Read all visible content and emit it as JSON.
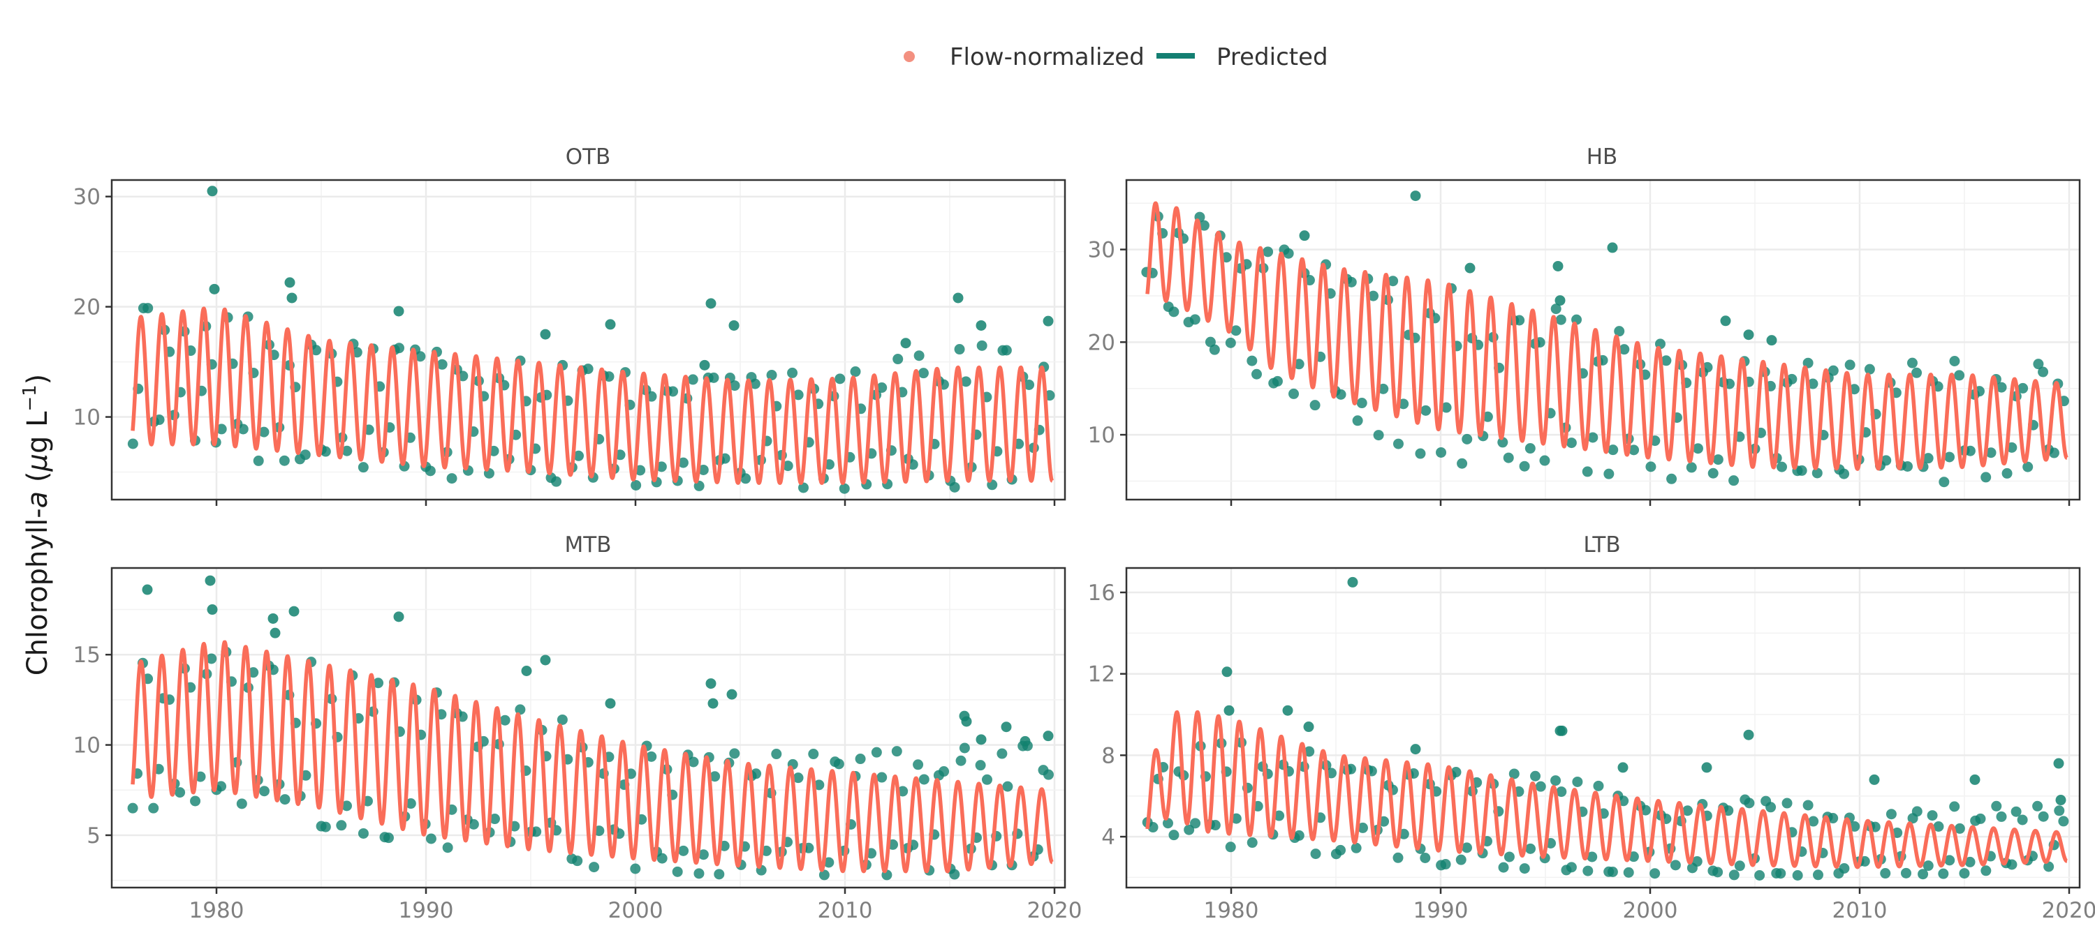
{
  "legend": {
    "placement": "top-center",
    "items": [
      {
        "label": "Flow-normalized",
        "shape": "point",
        "color": "#f39080"
      },
      {
        "label": "Predicted",
        "shape": "line",
        "color": "#147f72"
      }
    ]
  },
  "colors": {
    "points": "#12816f",
    "line": "#fa6d59",
    "panel_border": "#333333",
    "grid": "#ebebeb"
  },
  "chart_data": [
    {
      "panel": "OTB",
      "type": "scatter",
      "grid": true,
      "xlim": [
        1975,
        2020.5
      ],
      "ylim": [
        2.5,
        31.5
      ],
      "xticks": [
        "1980",
        "1990",
        "2000",
        "2010",
        "2020"
      ],
      "yticks": [
        "10",
        "20",
        "30"
      ],
      "ytick_values": [
        10,
        20,
        30
      ],
      "seasonal_line": {
        "x_start": 1976.0,
        "x_end": 2019.9,
        "peaks": [
          [
            1976,
            19
          ],
          [
            1980,
            20
          ],
          [
            1985,
            17
          ],
          [
            1990,
            16
          ],
          [
            1995,
            15
          ],
          [
            2000,
            14
          ],
          [
            2005,
            13.3
          ],
          [
            2010,
            13.5
          ],
          [
            2015,
            14.5
          ],
          [
            2019.9,
            14.5
          ]
        ],
        "troughs": [
          [
            1976,
            7.5
          ],
          [
            1980,
            7.5
          ],
          [
            1985,
            6.5
          ],
          [
            1990,
            5.5
          ],
          [
            1995,
            5.0
          ],
          [
            2000,
            4.3
          ],
          [
            2005,
            4.0
          ],
          [
            2010,
            4.0
          ],
          [
            2015,
            4.2
          ],
          [
            2019.9,
            4.2
          ]
        ]
      },
      "point_range": {
        "highs": [
          [
            1976,
            20
          ],
          [
            1980,
            20
          ],
          [
            1985,
            17
          ],
          [
            1990,
            16
          ],
          [
            1995,
            15
          ],
          [
            2000,
            14
          ],
          [
            2005,
            13.5
          ],
          [
            2010,
            14.5
          ],
          [
            2015,
            16
          ],
          [
            2019.9,
            17.5
          ]
        ],
        "lows": [
          [
            1976,
            7.5
          ],
          [
            1980,
            6.5
          ],
          [
            1985,
            5.3
          ],
          [
            1990,
            4.5
          ],
          [
            1995,
            4.2
          ],
          [
            2000,
            3.8
          ],
          [
            2005,
            3.7
          ],
          [
            2010,
            3.5
          ],
          [
            2015,
            3.6
          ],
          [
            2019.9,
            4.0
          ]
        ]
      },
      "outliers": [
        [
          1979.8,
          30.5
        ],
        [
          1979.9,
          21.6
        ],
        [
          1983.5,
          22.2
        ],
        [
          1983.6,
          20.8
        ],
        [
          1988.7,
          19.6
        ],
        [
          1995.7,
          17.5
        ],
        [
          1998.8,
          18.4
        ],
        [
          2003.6,
          20.3
        ],
        [
          2004.7,
          18.3
        ],
        [
          2012.9,
          16.7
        ],
        [
          2015.4,
          20.8
        ],
        [
          2016.5,
          18.3
        ],
        [
          2019.7,
          18.7
        ],
        [
          2003.3,
          14.7
        ]
      ]
    },
    {
      "panel": "HB",
      "type": "scatter",
      "grid": true,
      "xlim": [
        1975,
        2020.5
      ],
      "ylim": [
        3,
        37.5
      ],
      "xticks": [
        "1980",
        "1990",
        "2000",
        "2010",
        "2020"
      ],
      "yticks": [
        "10",
        "20",
        "30"
      ],
      "ytick_values": [
        10,
        20,
        30
      ],
      "seasonal_line": {
        "x_start": 1976.0,
        "x_end": 2019.9,
        "peaks": [
          [
            1976,
            35
          ],
          [
            1977,
            35
          ],
          [
            1980,
            31
          ],
          [
            1985,
            28
          ],
          [
            1990,
            26.5
          ],
          [
            1995,
            23
          ],
          [
            2000,
            19.5
          ],
          [
            2005,
            18
          ],
          [
            2010,
            16.5
          ],
          [
            2015,
            16.5
          ],
          [
            2019.9,
            15.5
          ]
        ],
        "troughs": [
          [
            1976,
            24
          ],
          [
            1977,
            24.5
          ],
          [
            1980,
            21
          ],
          [
            1982,
            17
          ],
          [
            1985,
            14
          ],
          [
            1990,
            10.5
          ],
          [
            1995,
            9
          ],
          [
            2000,
            7.5
          ],
          [
            2005,
            6.5
          ],
          [
            2010,
            6.3
          ],
          [
            2015,
            6.5
          ],
          [
            2019.9,
            7.5
          ]
        ]
      },
      "point_range": {
        "highs": [
          [
            1976,
            36
          ],
          [
            1980,
            32
          ],
          [
            1985,
            28
          ],
          [
            1990,
            26
          ],
          [
            1995,
            24
          ],
          [
            2000,
            20
          ],
          [
            2005,
            18
          ],
          [
            2010,
            17.5
          ],
          [
            2015,
            18
          ],
          [
            2019.9,
            17.5
          ]
        ],
        "lows": [
          [
            1976,
            24
          ],
          [
            1980,
            18
          ],
          [
            1985,
            12
          ],
          [
            1990,
            7
          ],
          [
            1995,
            6.5
          ],
          [
            2000,
            5.3
          ],
          [
            2005,
            5.0
          ],
          [
            2010,
            4.5
          ],
          [
            2015,
            5.0
          ],
          [
            2019.9,
            7.0
          ]
        ]
      },
      "outliers": [
        [
          1988.8,
          35.8
        ],
        [
          1998.2,
          30.2
        ],
        [
          1995.6,
          28.2
        ],
        [
          1991.4,
          28.0
        ],
        [
          1995.7,
          24.5
        ],
        [
          2003.6,
          22.3
        ],
        [
          2004.7,
          20.8
        ],
        [
          2005.8,
          20.2
        ],
        [
          1983.5,
          31.5
        ]
      ]
    },
    {
      "panel": "MTB",
      "type": "scatter",
      "grid": true,
      "xlim": [
        1975,
        2020.5
      ],
      "ylim": [
        2.1,
        19.8
      ],
      "xticks": [
        "1980",
        "1990",
        "2000",
        "2010",
        "2020"
      ],
      "yticks": [
        "5",
        "10",
        "15"
      ],
      "ytick_values": [
        5,
        10,
        15
      ],
      "seasonal_line": {
        "x_start": 1976.0,
        "x_end": 2019.9,
        "peaks": [
          [
            1976,
            14.5
          ],
          [
            1980,
            15.8
          ],
          [
            1985,
            14.5
          ],
          [
            1990,
            13.2
          ],
          [
            1995,
            11.5
          ],
          [
            2000,
            10.0
          ],
          [
            2005,
            9.0
          ],
          [
            2010,
            8.5
          ],
          [
            2015,
            8.0
          ],
          [
            2019.9,
            7.5
          ]
        ],
        "troughs": [
          [
            1976,
            7.0
          ],
          [
            1980,
            7.5
          ],
          [
            1985,
            6.5
          ],
          [
            1990,
            5.0
          ],
          [
            1995,
            4.2
          ],
          [
            2000,
            3.7
          ],
          [
            2005,
            3.3
          ],
          [
            2010,
            3.0
          ],
          [
            2015,
            3.0
          ],
          [
            2019.9,
            3.5
          ]
        ]
      },
      "point_range": {
        "highs": [
          [
            1976,
            14.5
          ],
          [
            1980,
            15.5
          ],
          [
            1985,
            14.5
          ],
          [
            1990,
            13
          ],
          [
            1995,
            12
          ],
          [
            2000,
            10
          ],
          [
            2005,
            9.5
          ],
          [
            2010,
            9.5
          ],
          [
            2015,
            9.8
          ],
          [
            2019.9,
            10
          ]
        ],
        "lows": [
          [
            1976,
            6.5
          ],
          [
            1980,
            6.5
          ],
          [
            1985,
            5.5
          ],
          [
            1990,
            4.5
          ],
          [
            1995,
            3.6
          ],
          [
            2000,
            3.0
          ],
          [
            2005,
            2.8
          ],
          [
            2010,
            2.8
          ],
          [
            2015,
            2.8
          ],
          [
            2019.9,
            3.5
          ]
        ]
      },
      "outliers": [
        [
          1976.7,
          18.6
        ],
        [
          1979.7,
          19.1
        ],
        [
          1979.8,
          17.5
        ],
        [
          1982.7,
          17.0
        ],
        [
          1982.8,
          16.2
        ],
        [
          1983.7,
          17.4
        ],
        [
          1988.7,
          17.1
        ],
        [
          1995.7,
          14.7
        ],
        [
          1994.8,
          14.1
        ],
        [
          1998.8,
          12.3
        ],
        [
          2003.6,
          13.4
        ],
        [
          2003.7,
          12.3
        ],
        [
          2004.6,
          12.8
        ],
        [
          2015.7,
          11.6
        ],
        [
          2015.8,
          11.3
        ],
        [
          2016.5,
          10.3
        ],
        [
          2017.7,
          11.0
        ],
        [
          2018.6,
          10.2
        ],
        [
          2019.7,
          10.5
        ]
      ]
    },
    {
      "panel": "LTB",
      "type": "scatter",
      "grid": true,
      "xlim": [
        1975,
        2020.5
      ],
      "ylim": [
        1.5,
        17.2
      ],
      "xticks": [
        "1980",
        "1990",
        "2000",
        "2010",
        "2020"
      ],
      "yticks": [
        "4",
        "8",
        "12",
        "16"
      ],
      "ytick_values": [
        4,
        8,
        12,
        16
      ],
      "seasonal_line": {
        "x_start": 1976.0,
        "x_end": 2019.9,
        "peaks": [
          [
            1976,
            7.5
          ],
          [
            1977.5,
            10.3
          ],
          [
            1980,
            9.8
          ],
          [
            1983,
            8.7
          ],
          [
            1985,
            8.0
          ],
          [
            1990,
            7.5
          ],
          [
            1995,
            6.5
          ],
          [
            2000,
            5.8
          ],
          [
            2005,
            5.3
          ],
          [
            2010,
            4.8
          ],
          [
            2015,
            4.5
          ],
          [
            2019.9,
            4.2
          ]
        ],
        "troughs": [
          [
            1976,
            4.0
          ],
          [
            1977,
            5.0
          ],
          [
            1979,
            4.2
          ],
          [
            1985,
            3.8
          ],
          [
            1990,
            3.3
          ],
          [
            1995,
            3.0
          ],
          [
            2000,
            2.8
          ],
          [
            2005,
            2.6
          ],
          [
            2010,
            2.5
          ],
          [
            2015,
            2.6
          ],
          [
            2019.9,
            2.8
          ]
        ]
      },
      "point_range": {
        "highs": [
          [
            1976,
            7.5
          ],
          [
            1980,
            9
          ],
          [
            1985,
            8
          ],
          [
            1990,
            7.3
          ],
          [
            1995,
            7.0
          ],
          [
            2000,
            6.0
          ],
          [
            2005,
            5.8
          ],
          [
            2010,
            5.3
          ],
          [
            2015,
            5.5
          ],
          [
            2019.9,
            5.5
          ]
        ],
        "lows": [
          [
            1976,
            3.8
          ],
          [
            1980,
            3.4
          ],
          [
            1985,
            3.1
          ],
          [
            1990,
            2.6
          ],
          [
            1995,
            2.4
          ],
          [
            2000,
            2.2
          ],
          [
            2005,
            2.1
          ],
          [
            2010,
            2.1
          ],
          [
            2015,
            2.2
          ],
          [
            2019.9,
            2.6
          ]
        ]
      },
      "outliers": [
        [
          1985.8,
          16.5
        ],
        [
          1979.8,
          12.1
        ],
        [
          1979.9,
          10.2
        ],
        [
          1982.7,
          10.2
        ],
        [
          1983.7,
          9.4
        ],
        [
          1988.8,
          8.3
        ],
        [
          1995.7,
          9.2
        ],
        [
          1995.8,
          9.2
        ],
        [
          2004.7,
          9.0
        ],
        [
          1998.7,
          7.4
        ],
        [
          2002.7,
          7.4
        ],
        [
          2010.7,
          6.8
        ],
        [
          2015.5,
          6.8
        ],
        [
          2019.5,
          7.6
        ],
        [
          2019.6,
          5.8
        ]
      ]
    }
  ],
  "y_axis_label": {
    "prefix": "Chlorophyll-",
    "italic": "a",
    "open": " (",
    "mu": "μ",
    "unit": "g L",
    "sup": "−1",
    "close": ")"
  }
}
